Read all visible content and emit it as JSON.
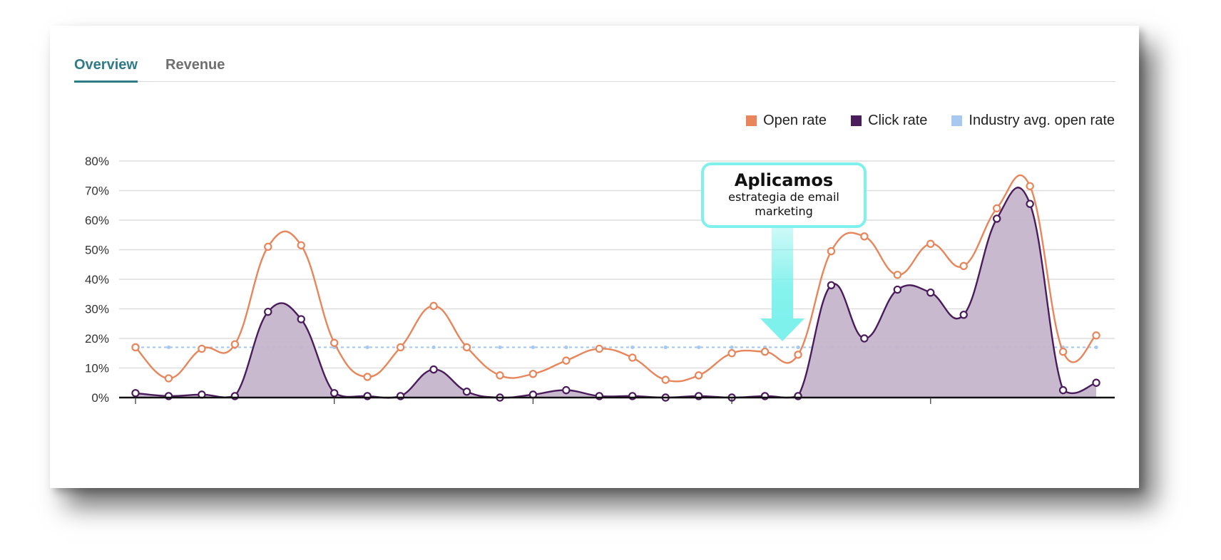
{
  "tabs": [
    {
      "label": "Overview",
      "active": true
    },
    {
      "label": "Revenue",
      "active": false
    }
  ],
  "legend": [
    {
      "label": "Open rate",
      "color": "#e8855a"
    },
    {
      "label": "Click rate",
      "color": "#4a1c5c"
    },
    {
      "label": "Industry avg. open rate",
      "color": "#a7c8ef"
    }
  ],
  "callout": {
    "title": "Aplicamos",
    "subtitle_line1": "estrategia de email",
    "subtitle_line2": "marketing",
    "border_color": "#7ff1ec",
    "arrow_color": "#7ff1ec"
  },
  "chart_data": {
    "type": "line",
    "title": "",
    "xlabel": "",
    "ylabel": "",
    "y_ticks": [
      "0%",
      "10%",
      "20%",
      "30%",
      "40%",
      "50%",
      "60%",
      "70%",
      "80%"
    ],
    "ylim": [
      0,
      80
    ],
    "grid": true,
    "legend_position": "top-right",
    "x": [
      1,
      2,
      3,
      4,
      5,
      6,
      7,
      8,
      9,
      10,
      11,
      12,
      13,
      14,
      15,
      16,
      17,
      18,
      19,
      20,
      21,
      22,
      23,
      24,
      25,
      26,
      27,
      28,
      29,
      30
    ],
    "series": [
      {
        "name": "Open rate",
        "color": "#e8855a",
        "style": "smooth-line-markers",
        "values": [
          17,
          6.5,
          16.5,
          18,
          51,
          51.5,
          18.5,
          7,
          17,
          31,
          17,
          7.5,
          8,
          12.5,
          16.5,
          13.5,
          6,
          7.5,
          15,
          15.5,
          14.5,
          49.5,
          54.5,
          41.5,
          52,
          44.5,
          64,
          71.5,
          15.5,
          21
        ]
      },
      {
        "name": "Click rate",
        "color": "#4a1c5c",
        "fill": "#c5b5cc",
        "style": "smooth-area-markers",
        "values": [
          1.5,
          0.5,
          1,
          0.5,
          29,
          26.5,
          1.5,
          0.5,
          0.5,
          9.5,
          2,
          0,
          1,
          2.5,
          0.5,
          0.5,
          0,
          0.5,
          0,
          0.5,
          0.5,
          38,
          20,
          36.5,
          35.5,
          28,
          60.5,
          65.5,
          2.5,
          5
        ]
      },
      {
        "name": "Industry avg. open rate",
        "color": "#a7c8ef",
        "style": "dotted",
        "values": [
          17,
          17,
          17,
          17,
          17,
          17,
          17,
          17,
          17,
          17,
          17,
          17,
          17,
          17,
          17,
          17,
          17,
          17,
          17,
          17,
          17,
          17,
          17,
          17,
          17,
          17,
          17,
          17,
          17,
          17
        ]
      }
    ],
    "annotations": [
      {
        "text": "Aplicamos estrategia de email marketing",
        "x_index": 20.5,
        "type": "callout-arrow"
      }
    ]
  }
}
